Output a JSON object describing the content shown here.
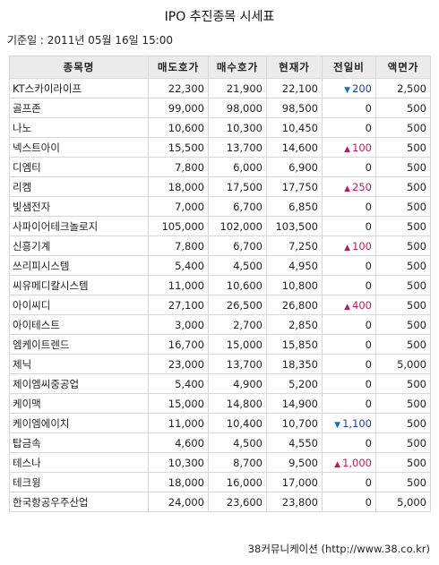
{
  "title": "IPO 추진종목 시세표",
  "base_date": "기준일 : 2011년 05월 16일 15:00",
  "table": {
    "headers": {
      "name": "종목명",
      "ask": "매도호가",
      "bid": "매수호가",
      "current": "현재가",
      "change": "전일비",
      "par": "액면가"
    },
    "rows": [
      {
        "name": "KT스카이라이프",
        "ask": "22,300",
        "bid": "21,900",
        "current": "22,100",
        "dir": "down",
        "change": "200",
        "par": "2,500"
      },
      {
        "name": "골프존",
        "ask": "99,000",
        "bid": "98,000",
        "current": "98,500",
        "dir": "flat",
        "change": "0",
        "par": "500"
      },
      {
        "name": "나노",
        "ask": "10,600",
        "bid": "10,300",
        "current": "10,450",
        "dir": "flat",
        "change": "0",
        "par": "500"
      },
      {
        "name": "넥스트아이",
        "ask": "15,500",
        "bid": "13,700",
        "current": "14,600",
        "dir": "up",
        "change": "100",
        "par": "500"
      },
      {
        "name": "디엠티",
        "ask": "7,800",
        "bid": "6,000",
        "current": "6,900",
        "dir": "flat",
        "change": "0",
        "par": "500"
      },
      {
        "name": "리켐",
        "ask": "18,000",
        "bid": "17,500",
        "current": "17,750",
        "dir": "up",
        "change": "250",
        "par": "500"
      },
      {
        "name": "빛샘전자",
        "ask": "7,000",
        "bid": "6,700",
        "current": "6,850",
        "dir": "flat",
        "change": "0",
        "par": "500"
      },
      {
        "name": "사파이어테크놀로지",
        "ask": "105,000",
        "bid": "102,000",
        "current": "103,500",
        "dir": "flat",
        "change": "0",
        "par": "500"
      },
      {
        "name": "신흥기계",
        "ask": "7,800",
        "bid": "6,700",
        "current": "7,250",
        "dir": "up",
        "change": "100",
        "par": "500"
      },
      {
        "name": "쓰리피시스템",
        "ask": "5,400",
        "bid": "4,500",
        "current": "4,950",
        "dir": "flat",
        "change": "0",
        "par": "500"
      },
      {
        "name": "씨유메디칼시스템",
        "ask": "11,000",
        "bid": "10,600",
        "current": "10,800",
        "dir": "flat",
        "change": "0",
        "par": "500"
      },
      {
        "name": "아이씨디",
        "ask": "27,100",
        "bid": "26,500",
        "current": "26,800",
        "dir": "up",
        "change": "400",
        "par": "500"
      },
      {
        "name": "아이테스트",
        "ask": "3,000",
        "bid": "2,700",
        "current": "2,850",
        "dir": "flat",
        "change": "0",
        "par": "500"
      },
      {
        "name": "엠케이트렌드",
        "ask": "16,700",
        "bid": "15,000",
        "current": "15,850",
        "dir": "flat",
        "change": "0",
        "par": "500"
      },
      {
        "name": "제닉",
        "ask": "23,000",
        "bid": "13,700",
        "current": "18,350",
        "dir": "flat",
        "change": "0",
        "par": "5,000"
      },
      {
        "name": "제이엠씨중공업",
        "ask": "5,400",
        "bid": "4,900",
        "current": "5,200",
        "dir": "flat",
        "change": "0",
        "par": "500"
      },
      {
        "name": "케이맥",
        "ask": "15,000",
        "bid": "14,800",
        "current": "14,900",
        "dir": "flat",
        "change": "0",
        "par": "500"
      },
      {
        "name": "케이엠에이치",
        "ask": "11,000",
        "bid": "10,400",
        "current": "10,700",
        "dir": "down",
        "change": "1,100",
        "par": "500"
      },
      {
        "name": "탑금속",
        "ask": "4,600",
        "bid": "4,500",
        "current": "4,550",
        "dir": "flat",
        "change": "0",
        "par": "500"
      },
      {
        "name": "테스나",
        "ask": "10,300",
        "bid": "8,700",
        "current": "9,500",
        "dir": "up",
        "change": "1,000",
        "par": "500"
      },
      {
        "name": "테크윙",
        "ask": "18,000",
        "bid": "16,000",
        "current": "17,000",
        "dir": "flat",
        "change": "0",
        "par": "500"
      },
      {
        "name": "한국항공우주산업",
        "ask": "24,000",
        "bid": "23,600",
        "current": "23,800",
        "dir": "flat",
        "change": "0",
        "par": "5,000"
      }
    ]
  },
  "source": "38커뮤니케이션 (http://www.38.co.kr)",
  "colors": {
    "up": "#c2185b",
    "down": "#1d3fa0",
    "header_bg": "#ebebeb",
    "border": "#d8d8d8"
  },
  "icons": {
    "up": "up-triangle-icon",
    "down": "down-triangle-icon"
  }
}
